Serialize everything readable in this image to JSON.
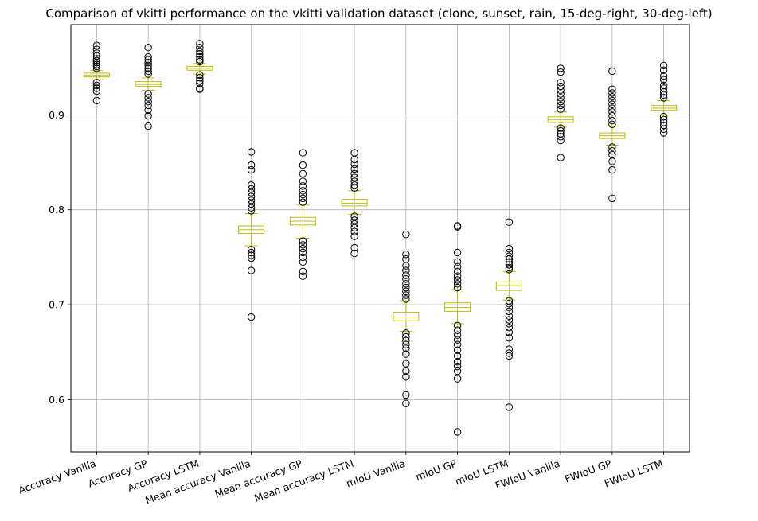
{
  "chart_data": {
    "type": "box",
    "title": "Comparison of vkitti performance on the vkitti validation dataset (clone, sunset, rain, 15-deg-right, 30-deg-left)",
    "xlabel": "",
    "ylabel": "",
    "ylim": [
      0.545,
      0.995
    ],
    "yticks": [
      0.6,
      0.7,
      0.8,
      0.9
    ],
    "ytick_labels": [
      "0.6",
      "0.7",
      "0.8",
      "0.9"
    ],
    "grid": true,
    "box_color": "#bfbf00",
    "flier_color": "#000000",
    "categories": [
      "Accuracy Vanilla",
      "Accuracy GP",
      "Accuracy LSTM",
      "Mean accuracy Vanilla",
      "Mean accuracy GP",
      "Mean accuracy LSTM",
      "mIoU Vanilla",
      "mIoU GP",
      "mIoU LSTM",
      "FWIoU Vanilla",
      "FWIoU GP",
      "FWIoU LSTM"
    ],
    "boxes": [
      {
        "whislo": 0.937,
        "q1": 0.94,
        "med": 0.942,
        "q3": 0.944,
        "whishi": 0.947,
        "fliers": [
          0.973,
          0.969,
          0.965,
          0.962,
          0.959,
          0.957,
          0.955,
          0.953,
          0.951,
          0.949,
          0.934,
          0.931,
          0.928,
          0.925,
          0.915
        ]
      },
      {
        "whislo": 0.926,
        "q1": 0.93,
        "med": 0.932,
        "q3": 0.935,
        "whishi": 0.939,
        "fliers": [
          0.971,
          0.961,
          0.958,
          0.955,
          0.952,
          0.949,
          0.946,
          0.943,
          0.922,
          0.918,
          0.914,
          0.91,
          0.905,
          0.899,
          0.888
        ]
      },
      {
        "whislo": 0.943,
        "q1": 0.947,
        "med": 0.949,
        "q3": 0.951,
        "whishi": 0.954,
        "fliers": [
          0.975,
          0.971,
          0.967,
          0.964,
          0.961,
          0.958,
          0.956,
          0.942,
          0.939,
          0.936,
          0.933,
          0.928,
          0.927
        ]
      },
      {
        "whislo": 0.762,
        "q1": 0.775,
        "med": 0.779,
        "q3": 0.783,
        "whishi": 0.796,
        "fliers": [
          0.861,
          0.847,
          0.842,
          0.826,
          0.822,
          0.818,
          0.814,
          0.81,
          0.806,
          0.802,
          0.799,
          0.758,
          0.755,
          0.752,
          0.749,
          0.736,
          0.687
        ]
      },
      {
        "whislo": 0.77,
        "q1": 0.784,
        "med": 0.788,
        "q3": 0.792,
        "whishi": 0.805,
        "fliers": [
          0.86,
          0.847,
          0.838,
          0.83,
          0.825,
          0.82,
          0.816,
          0.812,
          0.808,
          0.767,
          0.763,
          0.759,
          0.755,
          0.75,
          0.745,
          0.735,
          0.73
        ]
      },
      {
        "whislo": 0.795,
        "q1": 0.804,
        "med": 0.807,
        "q3": 0.811,
        "whishi": 0.82,
        "fliers": [
          0.86,
          0.853,
          0.848,
          0.843,
          0.838,
          0.834,
          0.83,
          0.826,
          0.823,
          0.793,
          0.789,
          0.785,
          0.781,
          0.777,
          0.772,
          0.76,
          0.754
        ]
      },
      {
        "whislo": 0.672,
        "q1": 0.683,
        "med": 0.687,
        "q3": 0.692,
        "whishi": 0.704,
        "fliers": [
          0.774,
          0.753,
          0.748,
          0.741,
          0.736,
          0.731,
          0.727,
          0.722,
          0.718,
          0.714,
          0.71,
          0.706,
          0.67,
          0.666,
          0.662,
          0.658,
          0.654,
          0.648,
          0.638,
          0.63,
          0.624,
          0.605,
          0.596
        ]
      },
      {
        "whislo": 0.68,
        "q1": 0.693,
        "med": 0.697,
        "q3": 0.702,
        "whishi": 0.716,
        "fliers": [
          0.783,
          0.782,
          0.755,
          0.745,
          0.74,
          0.735,
          0.73,
          0.726,
          0.722,
          0.718,
          0.678,
          0.673,
          0.668,
          0.663,
          0.658,
          0.652,
          0.646,
          0.64,
          0.635,
          0.63,
          0.622,
          0.566
        ]
      },
      {
        "whislo": 0.705,
        "q1": 0.715,
        "med": 0.72,
        "q3": 0.724,
        "whishi": 0.735,
        "fliers": [
          0.787,
          0.759,
          0.755,
          0.751,
          0.748,
          0.745,
          0.742,
          0.739,
          0.737,
          0.704,
          0.701,
          0.697,
          0.693,
          0.688,
          0.684,
          0.68,
          0.676,
          0.671,
          0.665,
          0.653,
          0.649,
          0.646,
          0.592
        ]
      },
      {
        "whislo": 0.887,
        "q1": 0.892,
        "med": 0.895,
        "q3": 0.898,
        "whishi": 0.903,
        "fliers": [
          0.949,
          0.945,
          0.934,
          0.93,
          0.926,
          0.922,
          0.918,
          0.914,
          0.91,
          0.906,
          0.886,
          0.883,
          0.88,
          0.877,
          0.873,
          0.855
        ]
      },
      {
        "whislo": 0.868,
        "q1": 0.875,
        "med": 0.878,
        "q3": 0.881,
        "whishi": 0.888,
        "fliers": [
          0.946,
          0.927,
          0.923,
          0.919,
          0.915,
          0.911,
          0.907,
          0.903,
          0.899,
          0.894,
          0.89,
          0.866,
          0.862,
          0.858,
          0.851,
          0.842,
          0.812
        ]
      },
      {
        "whislo": 0.9,
        "q1": 0.905,
        "med": 0.907,
        "q3": 0.91,
        "whishi": 0.915,
        "fliers": [
          0.952,
          0.947,
          0.941,
          0.937,
          0.931,
          0.928,
          0.924,
          0.921,
          0.918,
          0.898,
          0.895,
          0.892,
          0.889,
          0.885,
          0.881
        ]
      }
    ]
  }
}
